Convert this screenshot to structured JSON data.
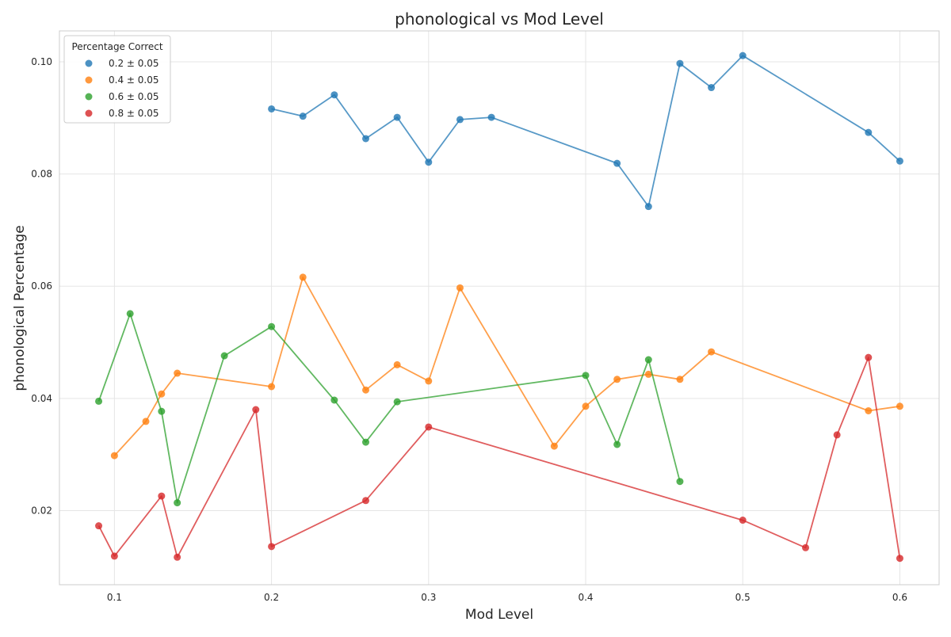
{
  "chart_data": {
    "type": "line",
    "title": "phonological vs Mod Level",
    "xlabel": "Mod Level",
    "ylabel": "phonological Percentage",
    "xlim": [
      0.065,
      0.625
    ],
    "ylim": [
      0.0068,
      0.1055
    ],
    "xticks": [
      0.1,
      0.2,
      0.3,
      0.4,
      0.5,
      0.6
    ],
    "xtick_labels": [
      "0.1",
      "0.2",
      "0.3",
      "0.4",
      "0.5",
      "0.6"
    ],
    "yticks": [
      0.02,
      0.04,
      0.06,
      0.08,
      0.1
    ],
    "ytick_labels": [
      "0.02",
      "0.04",
      "0.06",
      "0.08",
      "0.10"
    ],
    "grid": true,
    "legend": {
      "title": "Percentage Correct",
      "placement": "top-left"
    },
    "series": [
      {
        "name": "0.2 ± 0.05",
        "color": "#1f77b4",
        "points": [
          [
            0.2,
            0.0916
          ],
          [
            0.22,
            0.0903
          ],
          [
            0.24,
            0.0941
          ],
          [
            0.26,
            0.0863
          ],
          [
            0.28,
            0.0901
          ],
          [
            0.3,
            0.0821
          ],
          [
            0.32,
            0.0897
          ],
          [
            0.34,
            0.0901
          ],
          [
            0.42,
            0.0819
          ],
          [
            0.44,
            0.0742
          ],
          [
            0.46,
            0.0997
          ],
          [
            0.48,
            0.0954
          ],
          [
            0.5,
            0.1011
          ],
          [
            0.58,
            0.0874
          ],
          [
            0.6,
            0.0823
          ]
        ]
      },
      {
        "name": "0.4 ± 0.05",
        "color": "#ff7f0e",
        "points": [
          [
            0.1,
            0.0298
          ],
          [
            0.12,
            0.0359
          ],
          [
            0.13,
            0.0408
          ],
          [
            0.14,
            0.0445
          ],
          [
            0.2,
            0.0421
          ],
          [
            0.22,
            0.0616
          ],
          [
            0.26,
            0.0415
          ],
          [
            0.28,
            0.046
          ],
          [
            0.3,
            0.0431
          ],
          [
            0.32,
            0.0597
          ],
          [
            0.38,
            0.0315
          ],
          [
            0.4,
            0.0386
          ],
          [
            0.42,
            0.0434
          ],
          [
            0.44,
            0.0443
          ],
          [
            0.46,
            0.0434
          ],
          [
            0.48,
            0.0483
          ],
          [
            0.58,
            0.0378
          ],
          [
            0.6,
            0.0386
          ]
        ]
      },
      {
        "name": "0.6 ± 0.05",
        "color": "#2ca02c",
        "points": [
          [
            0.09,
            0.0395
          ],
          [
            0.11,
            0.0551
          ],
          [
            0.13,
            0.0377
          ],
          [
            0.14,
            0.0214
          ],
          [
            0.17,
            0.0476
          ],
          [
            0.2,
            0.0528
          ],
          [
            0.24,
            0.0397
          ],
          [
            0.26,
            0.0322
          ],
          [
            0.28,
            0.0394
          ],
          [
            0.4,
            0.0441
          ],
          [
            0.42,
            0.0318
          ],
          [
            0.44,
            0.0469
          ],
          [
            0.46,
            0.0252
          ]
        ]
      },
      {
        "name": "0.8 ± 0.05",
        "color": "#d62728",
        "points": [
          [
            0.09,
            0.0173
          ],
          [
            0.1,
            0.0119
          ],
          [
            0.13,
            0.0226
          ],
          [
            0.14,
            0.0117
          ],
          [
            0.19,
            0.038
          ],
          [
            0.2,
            0.0136
          ],
          [
            0.26,
            0.0218
          ],
          [
            0.3,
            0.0349
          ],
          [
            0.5,
            0.0183
          ],
          [
            0.54,
            0.0134
          ],
          [
            0.56,
            0.0335
          ],
          [
            0.58,
            0.0473
          ],
          [
            0.6,
            0.0115
          ]
        ]
      }
    ]
  }
}
